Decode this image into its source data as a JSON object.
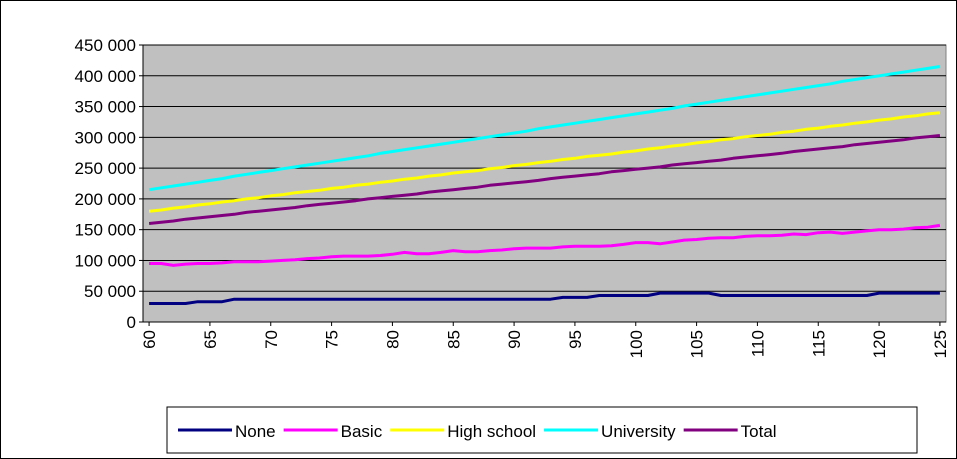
{
  "chart_data": {
    "type": "line",
    "x": [
      60,
      61,
      62,
      63,
      64,
      65,
      66,
      67,
      68,
      69,
      70,
      71,
      72,
      73,
      74,
      75,
      76,
      77,
      78,
      79,
      80,
      81,
      82,
      83,
      84,
      85,
      86,
      87,
      88,
      89,
      90,
      91,
      92,
      93,
      94,
      95,
      96,
      97,
      98,
      99,
      100,
      101,
      102,
      103,
      104,
      105,
      106,
      107,
      108,
      109,
      110,
      111,
      112,
      113,
      114,
      115,
      116,
      117,
      118,
      119,
      120,
      121,
      122,
      123,
      124,
      125
    ],
    "series": [
      {
        "name": "None",
        "color": "#000080",
        "values": [
          30000,
          30000,
          30000,
          30000,
          33000,
          33000,
          33000,
          37000,
          37000,
          37000,
          37000,
          37000,
          37000,
          37000,
          37000,
          37000,
          37000,
          37000,
          37000,
          37000,
          37000,
          37000,
          37000,
          37000,
          37000,
          37000,
          37000,
          37000,
          37000,
          37000,
          37000,
          37000,
          37000,
          37000,
          40000,
          40000,
          40000,
          43000,
          43000,
          43000,
          43000,
          43000,
          47000,
          47000,
          47000,
          47000,
          47000,
          43000,
          43000,
          43000,
          43000,
          43000,
          43000,
          43000,
          43000,
          43000,
          43000,
          43000,
          43000,
          43000,
          47000,
          47000,
          47000,
          47000,
          47000,
          47000
        ]
      },
      {
        "name": "Basic",
        "color": "#ff00ff",
        "values": [
          95000,
          95000,
          92000,
          94000,
          95000,
          95000,
          96000,
          98000,
          98000,
          98000,
          99000,
          100000,
          101000,
          103000,
          104000,
          106000,
          107000,
          107000,
          107000,
          108000,
          110000,
          113000,
          111000,
          111000,
          113000,
          116000,
          114000,
          114000,
          116000,
          117000,
          119000,
          120000,
          120000,
          120000,
          122000,
          123000,
          123000,
          123000,
          124000,
          126000,
          129000,
          129000,
          127000,
          130000,
          133000,
          134000,
          136000,
          137000,
          137000,
          139000,
          140000,
          140000,
          141000,
          143000,
          142000,
          145000,
          146000,
          144000,
          146000,
          148000,
          150000,
          150000,
          151000,
          153000,
          154000,
          157000
        ]
      },
      {
        "name": "High school",
        "color": "#ffff00",
        "values": [
          180000,
          182000,
          185000,
          187000,
          190000,
          192000,
          195000,
          197000,
          200000,
          202000,
          205000,
          207000,
          210000,
          212000,
          214000,
          217000,
          219000,
          222000,
          224000,
          227000,
          229000,
          232000,
          234000,
          237000,
          239000,
          242000,
          244000,
          246000,
          249000,
          251000,
          254000,
          256000,
          259000,
          261000,
          264000,
          266000,
          269000,
          271000,
          273000,
          276000,
          278000,
          281000,
          283000,
          286000,
          288000,
          291000,
          293000,
          296000,
          298000,
          301000,
          303000,
          305000,
          308000,
          310000,
          313000,
          315000,
          318000,
          320000,
          323000,
          325000,
          328000,
          330000,
          333000,
          335000,
          338000,
          340000
        ]
      },
      {
        "name": "University",
        "color": "#00ffff",
        "values": [
          215000,
          218000,
          221000,
          224000,
          227000,
          230000,
          233000,
          237000,
          240000,
          243000,
          246000,
          249000,
          252000,
          255000,
          258000,
          261000,
          264000,
          267000,
          270000,
          274000,
          277000,
          280000,
          283000,
          286000,
          289000,
          292000,
          295000,
          298000,
          301000,
          304000,
          307000,
          310000,
          314000,
          317000,
          320000,
          323000,
          326000,
          329000,
          332000,
          335000,
          338000,
          341000,
          344000,
          347000,
          351000,
          354000,
          357000,
          360000,
          363000,
          366000,
          369000,
          372000,
          375000,
          378000,
          381000,
          384000,
          387000,
          391000,
          394000,
          397000,
          400000,
          403000,
          406000,
          409000,
          412000,
          415000
        ]
      },
      {
        "name": "Total",
        "color": "#800080",
        "values": [
          160000,
          162000,
          164000,
          167000,
          169000,
          171000,
          173000,
          175000,
          178000,
          180000,
          182000,
          184000,
          186000,
          189000,
          191000,
          193000,
          195000,
          197000,
          200000,
          202000,
          204000,
          206000,
          208000,
          211000,
          213000,
          215000,
          217000,
          219000,
          222000,
          224000,
          226000,
          228000,
          230000,
          233000,
          235000,
          237000,
          239000,
          241000,
          244000,
          246000,
          248000,
          250000,
          252000,
          255000,
          257000,
          259000,
          261000,
          263000,
          266000,
          268000,
          270000,
          272000,
          274000,
          277000,
          279000,
          281000,
          283000,
          285000,
          288000,
          290000,
          292000,
          294000,
          296000,
          299000,
          301000,
          303000
        ]
      }
    ],
    "xlim": [
      59.5,
      125.5
    ],
    "xticks": [
      60,
      65,
      70,
      75,
      80,
      85,
      90,
      95,
      100,
      105,
      110,
      115,
      120,
      125
    ],
    "ylim": [
      0,
      450000
    ],
    "yticks": [
      0,
      {
        "value": 50000,
        "label": "50 000"
      },
      {
        "value": 100000,
        "label": "100 000"
      },
      {
        "value": 150000,
        "label": "150 000"
      },
      {
        "value": 200000,
        "label": "200 000"
      },
      {
        "value": 250000,
        "label": "250 000"
      },
      {
        "value": 300000,
        "label": "300 000"
      },
      {
        "value": 350000,
        "label": "350 000"
      },
      {
        "value": 400000,
        "label": "400 000"
      },
      {
        "value": 450000,
        "label": "450 000"
      }
    ],
    "grid": true,
    "legend": "bottom"
  }
}
